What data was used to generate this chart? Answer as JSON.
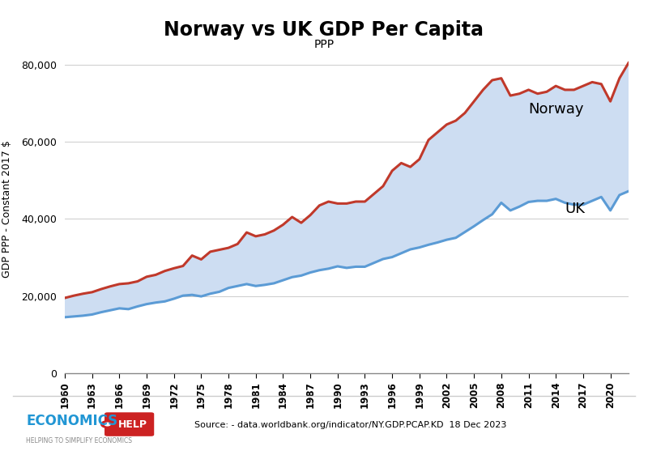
{
  "title": "Norway vs UK GDP Per Capita",
  "subtitle": "PPP",
  "ylabel": "GDP PPP - Constant 2017 $",
  "source": "Source: - data.worldbank.org/indicator/NY.GDP.PCAP.KD  18 Dec 2023",
  "xlim": [
    1960,
    2022
  ],
  "ylim": [
    0,
    85000
  ],
  "yticks": [
    0,
    20000,
    40000,
    60000,
    80000
  ],
  "norway_color": "#c0392b",
  "uk_color": "#5b9bd5",
  "hatch_color": "#c8d8ee",
  "norway_label": "Norway",
  "uk_label": "UK",
  "years": [
    1960,
    1961,
    1962,
    1963,
    1964,
    1965,
    1966,
    1967,
    1968,
    1969,
    1970,
    1971,
    1972,
    1973,
    1974,
    1975,
    1976,
    1977,
    1978,
    1979,
    1980,
    1981,
    1982,
    1983,
    1984,
    1985,
    1986,
    1987,
    1988,
    1989,
    1990,
    1991,
    1992,
    1993,
    1994,
    1995,
    1996,
    1997,
    1998,
    1999,
    2000,
    2001,
    2002,
    2003,
    2004,
    2005,
    2006,
    2007,
    2008,
    2009,
    2010,
    2011,
    2012,
    2013,
    2014,
    2015,
    2016,
    2017,
    2018,
    2019,
    2020,
    2021,
    2022
  ],
  "norway": [
    19500,
    20100,
    20600,
    21000,
    21800,
    22500,
    23100,
    23300,
    23800,
    25000,
    25500,
    26500,
    27200,
    27800,
    30500,
    29500,
    31500,
    32000,
    32500,
    33500,
    36500,
    35500,
    36000,
    37000,
    38500,
    40500,
    39000,
    41000,
    43500,
    44500,
    44000,
    44000,
    44500,
    44500,
    46500,
    48500,
    52500,
    54500,
    53500,
    55500,
    60500,
    62500,
    64500,
    65500,
    67500,
    70500,
    73500,
    76000,
    76500,
    72000,
    72500,
    73500,
    72500,
    73000,
    74500,
    73500,
    73500,
    74500,
    75500,
    75000,
    70500,
    76500,
    80500
  ],
  "uk": [
    14500,
    14700,
    14900,
    15200,
    15800,
    16300,
    16800,
    16600,
    17300,
    17900,
    18300,
    18600,
    19300,
    20100,
    20300,
    19900,
    20600,
    21100,
    22100,
    22600,
    23100,
    22600,
    22900,
    23300,
    24100,
    24900,
    25300,
    26100,
    26700,
    27100,
    27700,
    27300,
    27600,
    27600,
    28600,
    29600,
    30100,
    31100,
    32100,
    32600,
    33300,
    33900,
    34600,
    35100,
    36600,
    38100,
    39700,
    41200,
    44200,
    42200,
    43200,
    44400,
    44700,
    44700,
    45200,
    44200,
    43700,
    43700,
    44700,
    45700,
    42200,
    46200,
    47200
  ]
}
